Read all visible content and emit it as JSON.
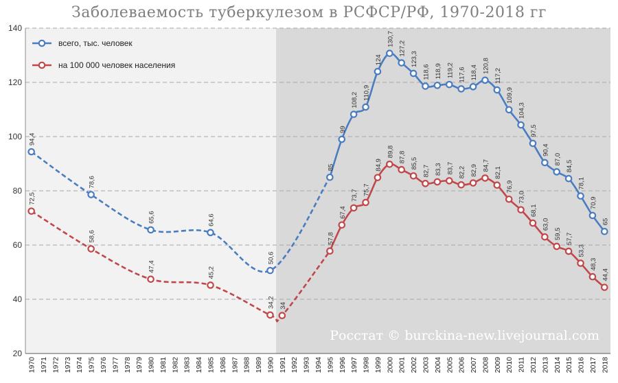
{
  "chart_data": {
    "type": "line",
    "title": "Заболеваемость туберкулезом в РСФСР/РФ, 1970-2018 гг",
    "watermark": "Росстат © burckina-new.livejournal.com",
    "ylim": [
      20,
      140
    ],
    "yticks": [
      20,
      40,
      60,
      80,
      100,
      120,
      140
    ],
    "xlim": [
      1970,
      2018
    ],
    "grid": "horizontal-dashed",
    "legend_position": "top-left",
    "shaded_from_year": 1991,
    "x_tick_labels": [
      "1970",
      "1971",
      "1972",
      "1973",
      "1974",
      "1975",
      "1976",
      "1977",
      "1978",
      "1979",
      "1980",
      "1981",
      "1982",
      "1983",
      "1984",
      "1985",
      "1986",
      "1987",
      "1988",
      "1989",
      "1990",
      "1991",
      "1992",
      "1993",
      "1994",
      "1995",
      "1996",
      "1997",
      "1998",
      "1999",
      "2000",
      "2001",
      "2002",
      "2003",
      "2004",
      "2005",
      "2006",
      "2007",
      "2008",
      "2009",
      "2010",
      "2011",
      "2012",
      "2013",
      "2014",
      "2015",
      "2016",
      "2017",
      "2018"
    ],
    "series": [
      {
        "name": "всего, тыс. человек",
        "color": "#4a7cc0",
        "x": [
          1970,
          1975,
          1980,
          1985,
          1990,
          1995,
          1996,
          1997,
          1998,
          1999,
          2000,
          2001,
          2002,
          2003,
          2004,
          2005,
          2006,
          2007,
          2008,
          2009,
          2010,
          2011,
          2012,
          2013,
          2014,
          2015,
          2016,
          2017,
          2018
        ],
        "values": [
          94.4,
          78.6,
          65.6,
          64.6,
          50.6,
          85,
          99,
          108.2,
          110.9,
          124,
          130.7,
          127.2,
          123.3,
          118.6,
          118.9,
          119.2,
          117.6,
          118.4,
          120.8,
          117.2,
          109.9,
          104.3,
          97.5,
          90.4,
          87.0,
          84.5,
          78.1,
          70.9,
          65
        ],
        "labels": [
          "94,4",
          "78,6",
          "65,6",
          "64,6",
          "50,6",
          "85",
          "99",
          "108,2",
          "110,9",
          "124",
          "130,7",
          "127,2",
          "123,3",
          "118,6",
          "118,9",
          "119,2",
          "117,6",
          "118,4",
          "120,8",
          "117,2",
          "109,9",
          "104,3",
          "97,5",
          "90,4",
          "87,0",
          "84,5",
          "78,1",
          "70,9",
          "65"
        ]
      },
      {
        "name": "на 100 000 человек населения",
        "color": "#c0484a",
        "x": [
          1970,
          1975,
          1980,
          1985,
          1990,
          1991,
          1995,
          1996,
          1997,
          1998,
          1999,
          2000,
          2001,
          2002,
          2003,
          2004,
          2005,
          2006,
          2007,
          2008,
          2009,
          2010,
          2011,
          2012,
          2013,
          2014,
          2015,
          2016,
          2017,
          2018
        ],
        "values": [
          72.5,
          58.6,
          47.4,
          45.2,
          34.2,
          34,
          57.8,
          67.4,
          73.7,
          75.7,
          84.9,
          89.8,
          87.8,
          85.5,
          82.7,
          83.3,
          83.7,
          82.2,
          82.9,
          84.7,
          82.1,
          76.9,
          73.0,
          68.1,
          63.0,
          59.5,
          57.7,
          53.3,
          48.3,
          44.4
        ],
        "labels": [
          "72,5",
          "58,6",
          "47,4",
          "45,2",
          "34,2",
          "34",
          "57,8",
          "67,4",
          "73,7",
          "75,7",
          "84,9",
          "89,8",
          "87,8",
          "85,5",
          "82,7",
          "83,3",
          "83,7",
          "82,2",
          "82,9",
          "84,7",
          "82,1",
          "76,9",
          "73,0",
          "68,1",
          "63,0",
          "59,5",
          "57,7",
          "53,3",
          "48,3",
          "44,4"
        ]
      }
    ]
  }
}
